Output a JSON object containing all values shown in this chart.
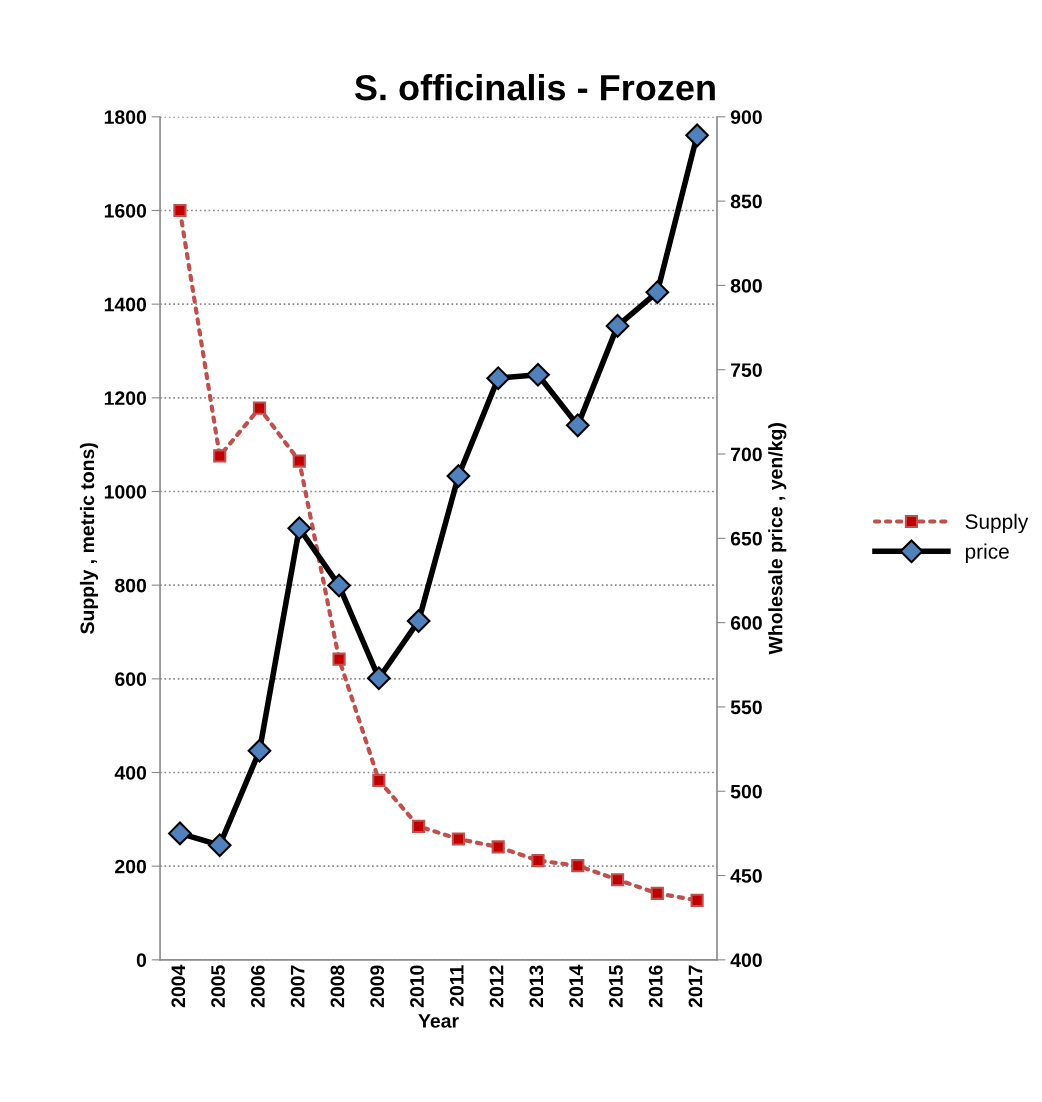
{
  "chart_data": {
    "type": "line",
    "title": "S. officinalis - Frozen",
    "xlabel": "Year",
    "ylabel": "Supply , metric tons)",
    "y2label": "Wholesale price , yen/kg)",
    "categories": [
      "2004",
      "2005",
      "2006",
      "2007",
      "2008",
      "2009",
      "2010",
      "2011",
      "2012",
      "2013",
      "2014",
      "2015",
      "2016",
      "2017"
    ],
    "series": [
      {
        "name": "Supply",
        "color": "#c00000",
        "marker": "square",
        "line_style": "dotted",
        "values": [
          1600,
          1076,
          1178,
          1065,
          642,
          383,
          285,
          258,
          241,
          212,
          201,
          171,
          142,
          127
        ]
      },
      {
        "name": "price",
        "color": "#000000",
        "marker": "diamond",
        "line_style": "solid",
        "axis": "y2",
        "values": [
          475,
          468,
          524,
          656,
          622,
          567,
          601,
          687,
          745,
          747,
          717,
          776,
          796,
          889
        ]
      }
    ],
    "ylim": [
      0,
      1800
    ],
    "yticks": [
      0,
      200,
      400,
      600,
      800,
      1000,
      1200,
      1400,
      1600,
      1800
    ],
    "y2lim": [
      400,
      900
    ],
    "y2ticks": [
      400,
      450,
      500,
      550,
      600,
      650,
      700,
      750,
      800,
      850,
      900
    ],
    "grid": "y",
    "legend": "right"
  }
}
